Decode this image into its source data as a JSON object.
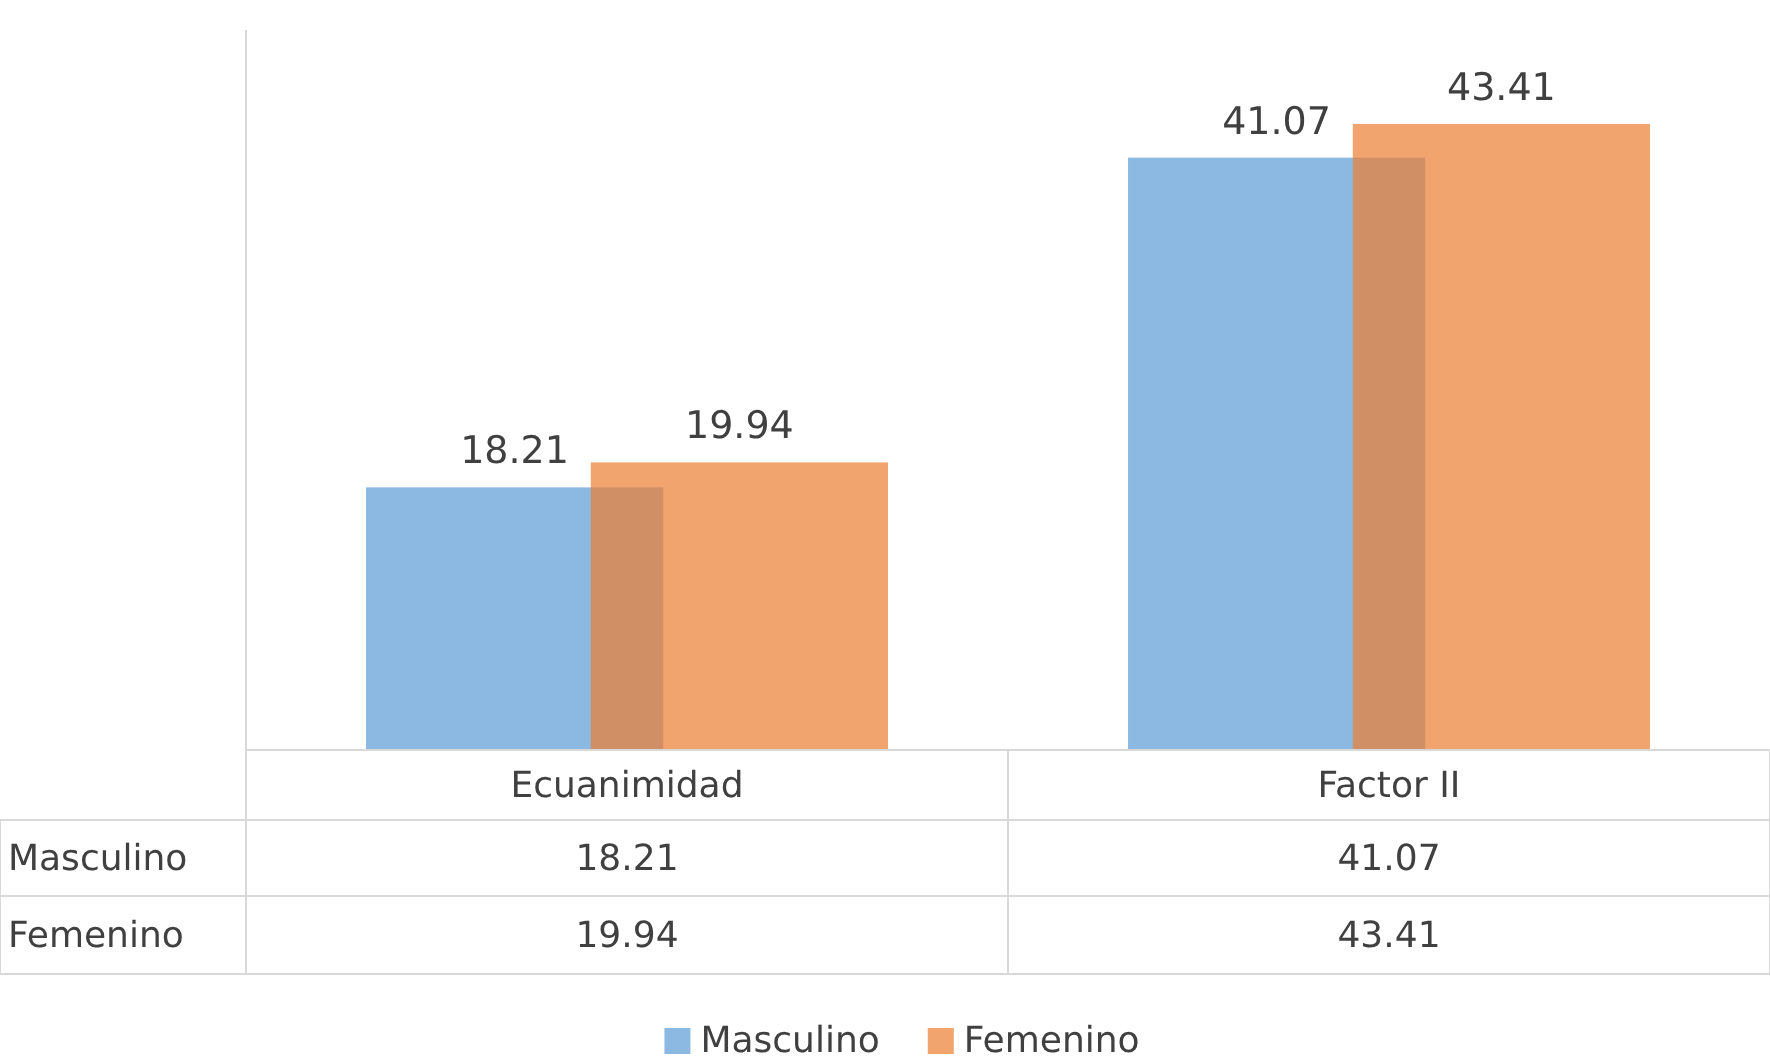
{
  "chart_data": {
    "type": "bar",
    "categories": [
      "Ecuanimidad",
      "Factor II"
    ],
    "series": [
      {
        "name": "Masculino",
        "color": "#5b9bd5",
        "values": [
          18.21,
          41.07
        ],
        "value_labels": [
          "18.21",
          "41.07"
        ]
      },
      {
        "name": "Femenino",
        "color": "#ed7d31",
        "values": [
          19.94,
          43.41
        ],
        "value_labels": [
          "19.94",
          "43.41"
        ]
      }
    ],
    "annotations": [
      "18.21",
      "41.07",
      "19.94",
      "43.41"
    ],
    "legend": "bottom"
  }
}
